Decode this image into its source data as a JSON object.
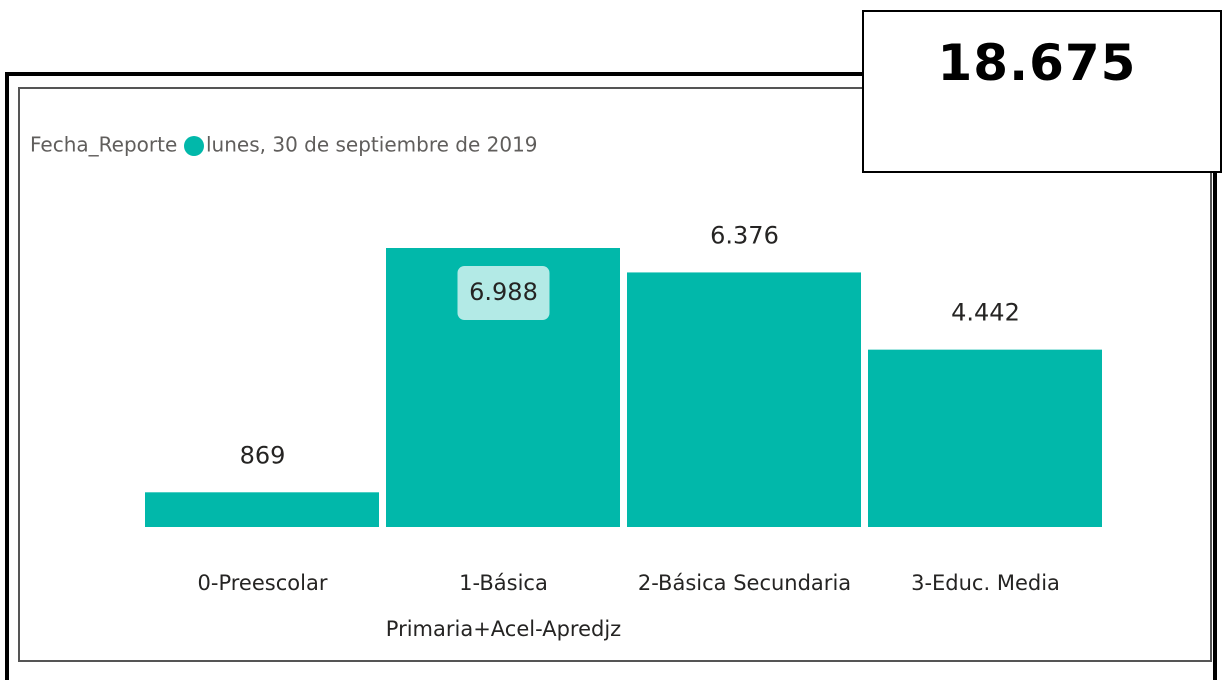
{
  "chart_data": {
    "type": "bar",
    "legend_title": "Fecha_Reporte",
    "categories": [
      "0-Preescolar",
      "1-Básica Primaria+Acel-Apredjz",
      "2-Básica Secundaria",
      "3-Educ. Media"
    ],
    "series": [
      {
        "name": "lunes, 30 de septiembre de 2019",
        "color": "#01b8aa",
        "values": [
          869,
          6988,
          6376,
          4442
        ],
        "value_labels": [
          "869",
          "6.988",
          "6.376",
          "4.442"
        ]
      }
    ]
  },
  "card": {
    "value": "18.675"
  }
}
